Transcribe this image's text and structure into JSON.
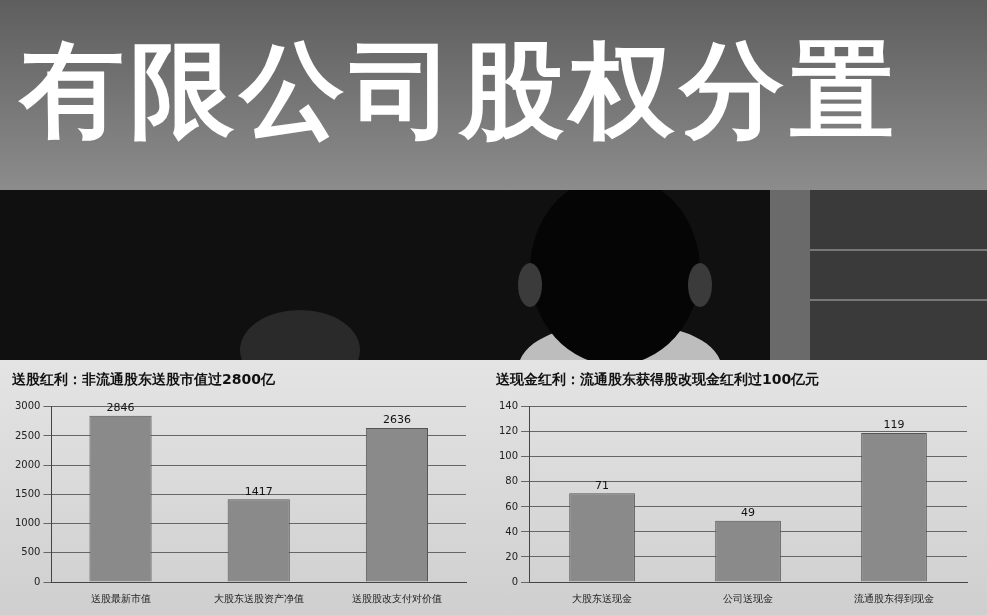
{
  "banner": {
    "text": "有限公司股权分置"
  },
  "chart_data": [
    {
      "type": "bar",
      "title": "送股红利：非流通股东送股市值过2800亿",
      "categories": [
        "送股最新市值",
        "大股东送股资产净值",
        "送股股改支付对价值"
      ],
      "values": [
        2846,
        1417,
        2636
      ],
      "color": "#8a8a8a",
      "ylim": [
        0,
        3000
      ],
      "yticks": [
        0,
        500,
        1000,
        1500,
        2000,
        2500,
        3000
      ],
      "grid": true,
      "data_labels": true
    },
    {
      "type": "bar",
      "title": "送现金红利：流通股东获得股改现金红利过100亿元",
      "categories": [
        "大股东送现金",
        "公司送现金",
        "流通股东得到现金"
      ],
      "values": [
        71,
        49,
        119
      ],
      "color": "#8a8a8a",
      "ylim": [
        0,
        140
      ],
      "yticks": [
        0,
        20,
        40,
        60,
        80,
        100,
        120,
        140
      ],
      "grid": true,
      "data_labels": true
    }
  ]
}
